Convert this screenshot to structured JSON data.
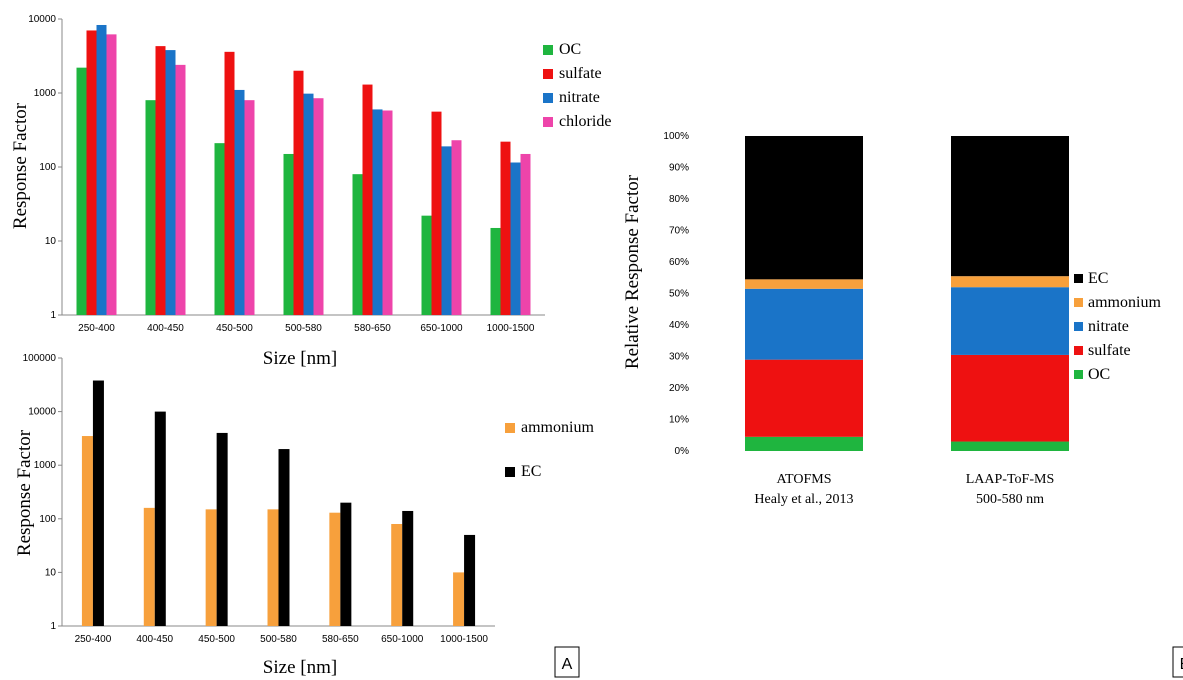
{
  "colors": {
    "OC": "#1fb53f",
    "sulfate": "#ee1111",
    "nitrate": "#1a74c8",
    "chloride": "#ee44aa",
    "ammonium": "#f7a03c",
    "EC": "#000000"
  },
  "panel_labels": {
    "a": "A",
    "b": "B"
  },
  "chart_data": [
    {
      "type": "bar",
      "scale": "log",
      "categories": [
        "250-400",
        "400-450",
        "450-500",
        "500-580",
        "580-650",
        "650-1000",
        "1000-1500"
      ],
      "series": [
        {
          "name": "OC",
          "values": [
            2200,
            800,
            210,
            150,
            80,
            22,
            15
          ]
        },
        {
          "name": "sulfate",
          "values": [
            7000,
            4300,
            3600,
            2000,
            1300,
            560,
            220
          ]
        },
        {
          "name": "nitrate",
          "values": [
            8300,
            3800,
            1100,
            980,
            600,
            190,
            115
          ]
        },
        {
          "name": "chloride",
          "values": [
            6200,
            2400,
            800,
            850,
            580,
            230,
            150
          ]
        }
      ],
      "ylim": [
        1,
        10000
      ],
      "yticks": [
        "1",
        "10",
        "100",
        "1000",
        "10000"
      ],
      "xlabel": "Size [nm]",
      "ylabel": "Response Factor",
      "legend_position": "right"
    },
    {
      "type": "bar",
      "scale": "log",
      "categories": [
        "250-400",
        "400-450",
        "450-500",
        "500-580",
        "580-650",
        "650-1000",
        "1000-1500"
      ],
      "series": [
        {
          "name": "ammonium",
          "values": [
            3500,
            160,
            150,
            150,
            130,
            80,
            10
          ]
        },
        {
          "name": "EC",
          "values": [
            38000,
            10000,
            4000,
            2000,
            200,
            140,
            50
          ]
        }
      ],
      "ylim": [
        1,
        100000
      ],
      "yticks": [
        "1",
        "10",
        "100",
        "1000",
        "10000",
        "100000"
      ],
      "xlabel": "Size [nm]",
      "ylabel": "Response Factor",
      "legend_position": "right"
    },
    {
      "type": "bar",
      "stacked": true,
      "percent": true,
      "categories": [
        {
          "line1": "ATOFMS",
          "line2": "Healy et al., 2013"
        },
        {
          "line1": "LAAP-ToF-MS",
          "line2": "500-580 nm"
        }
      ],
      "series": [
        {
          "name": "OC",
          "values": [
            4.5,
            3.0
          ]
        },
        {
          "name": "sulfate",
          "values": [
            24.5,
            27.5
          ]
        },
        {
          "name": "nitrate",
          "values": [
            22.5,
            21.5
          ]
        },
        {
          "name": "ammonium",
          "values": [
            3.0,
            3.5
          ]
        },
        {
          "name": "EC",
          "values": [
            45.5,
            44.5
          ]
        }
      ],
      "legend_order": [
        "EC",
        "ammonium",
        "nitrate",
        "sulfate",
        "OC"
      ],
      "ylim": [
        0,
        100
      ],
      "yticks": [
        "0%",
        "10%",
        "20%",
        "30%",
        "40%",
        "50%",
        "60%",
        "70%",
        "80%",
        "90%",
        "100%"
      ],
      "ylabel": "Relative Response Factor",
      "legend_position": "right"
    }
  ]
}
